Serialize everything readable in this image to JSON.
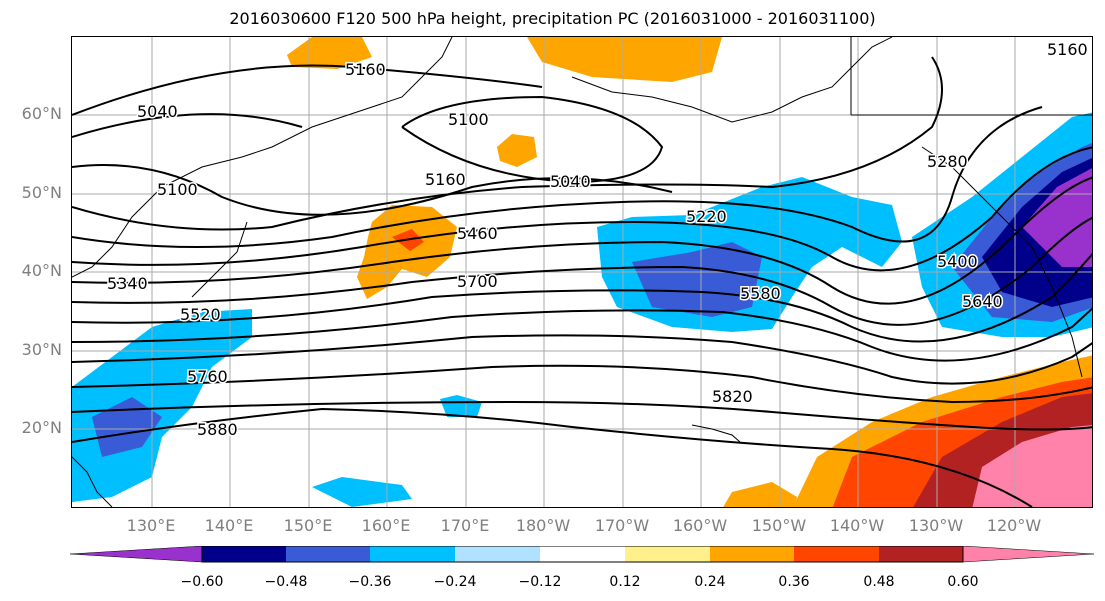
{
  "title": "2016030600 F120 500 hPa height, precipitation PC (2016031000 - 2016031100)",
  "lat_labels": [
    "60°N",
    "50°N",
    "40°N",
    "30°N",
    "20°N"
  ],
  "lon_labels": [
    "130°E",
    "140°E",
    "150°E",
    "160°E",
    "170°E",
    "180°W",
    "170°W",
    "160°W",
    "150°W",
    "140°W",
    "130°W",
    "120°W"
  ],
  "contour_labels": [
    "5160",
    "5040",
    "5100",
    "5040",
    "5100",
    "5160",
    "5220",
    "5460",
    "5340",
    "5520",
    "5700",
    "5580",
    "5400",
    "5640",
    "5760",
    "5820",
    "5880",
    "5280",
    "5160"
  ],
  "colorbar": {
    "ticks": [
      "−0.60",
      "−0.48",
      "−0.36",
      "−0.24",
      "−0.12",
      "0.12",
      "0.24",
      "0.36",
      "0.48",
      "0.60"
    ],
    "colors": [
      "#9932cc",
      "#00008b",
      "#3a5bd6",
      "#00bfff",
      "#b0e2ff",
      "#ffffff",
      "#fff08c",
      "#ffa500",
      "#ff4500",
      "#b22222",
      "#ff82ab"
    ]
  }
}
